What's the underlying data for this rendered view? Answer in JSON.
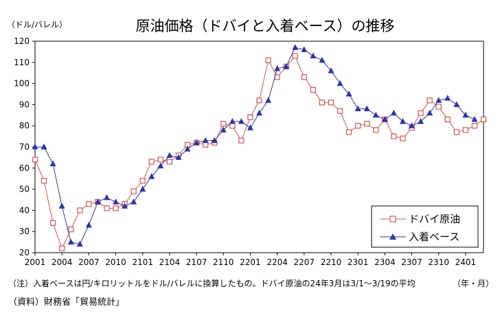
{
  "chart_data": {
    "type": "line",
    "title": "原油価格（ドバイと入着ベース）の推移",
    "ylabel": "（ドル/バレル）",
    "xlabel": "（年・月）",
    "ylim": [
      20,
      120
    ],
    "yticks": [
      20,
      30,
      40,
      50,
      60,
      70,
      80,
      90,
      100,
      110,
      120
    ],
    "xtick_labels": [
      "2001",
      "2004",
      "2007",
      "2010",
      "2101",
      "2104",
      "2107",
      "2110",
      "2201",
      "2204",
      "2207",
      "2210",
      "2301",
      "2304",
      "2307",
      "2310",
      "2401"
    ],
    "grid": false,
    "legend_position": "bottom-right",
    "series": [
      {
        "name": "ドバイ原油",
        "color": "#d9534f",
        "marker": "square-open",
        "values": [
          64,
          54,
          34,
          22,
          31,
          40,
          43,
          44,
          41,
          41,
          43,
          49,
          54,
          63,
          64,
          63,
          66,
          71,
          72,
          71,
          72,
          81,
          80,
          73,
          84,
          92,
          111,
          103,
          108,
          113,
          103,
          97,
          91,
          91,
          87,
          77,
          80,
          81,
          78,
          83,
          75,
          74,
          79,
          86,
          92,
          89,
          83,
          77,
          78,
          80,
          83
        ]
      },
      {
        "name": "入着ベース",
        "color": "#2b35a8",
        "marker": "triangle-filled",
        "values": [
          70,
          70,
          62,
          42,
          25,
          24,
          33,
          44,
          46,
          44,
          42,
          44,
          50,
          56,
          61,
          66,
          65,
          69,
          72,
          73,
          73,
          78,
          82,
          82,
          79,
          86,
          92,
          107,
          108,
          117,
          116,
          113,
          111,
          106,
          100,
          95,
          88,
          88,
          85,
          83,
          86,
          82,
          80,
          82,
          86,
          92,
          93,
          90,
          85,
          83
        ]
      }
    ]
  },
  "notes": {
    "note": "（注）入着ベースは円/キロリットルをドル/バレルに換算したもの。ドバイ原油の24年3月は3/1～3/19の平均",
    "xunit": "（年・月）",
    "source": "（資料）財務省「貿易統計」"
  }
}
